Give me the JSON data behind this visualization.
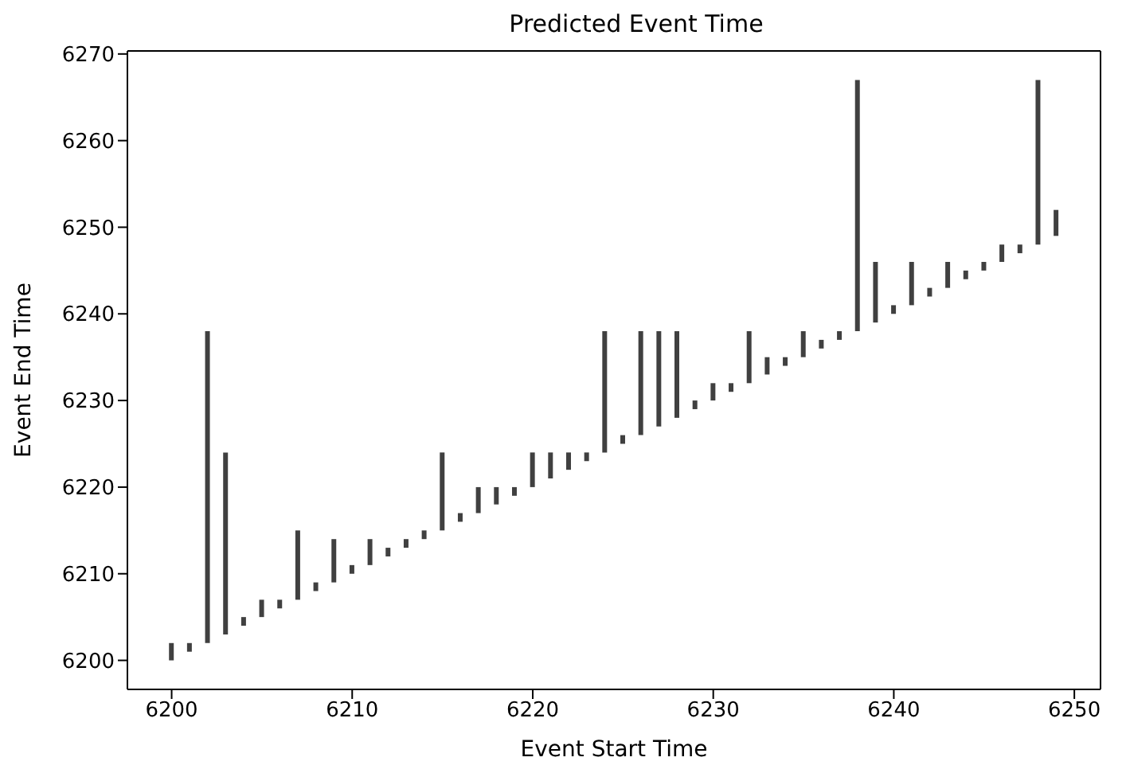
{
  "chart_data": {
    "type": "bar",
    "title": "Predicted Event Time",
    "xlabel": "Event Start Time",
    "ylabel": "Event End Time",
    "x": [
      6200,
      6201,
      6202,
      6203,
      6204,
      6205,
      6206,
      6207,
      6208,
      6209,
      6210,
      6211,
      6212,
      6213,
      6214,
      6215,
      6216,
      6217,
      6218,
      6219,
      6220,
      6221,
      6222,
      6223,
      6224,
      6225,
      6226,
      6227,
      6228,
      6229,
      6230,
      6231,
      6232,
      6233,
      6234,
      6235,
      6236,
      6237,
      6238,
      6239,
      6240,
      6241,
      6242,
      6243,
      6244,
      6245,
      6246,
      6247,
      6248,
      6249
    ],
    "base": [
      6200,
      6201,
      6202,
      6203,
      6204,
      6205,
      6206,
      6207,
      6208,
      6209,
      6210,
      6211,
      6212,
      6213,
      6214,
      6215,
      6216,
      6217,
      6218,
      6219,
      6220,
      6221,
      6222,
      6223,
      6224,
      6225,
      6226,
      6227,
      6228,
      6229,
      6230,
      6231,
      6232,
      6233,
      6234,
      6235,
      6236,
      6237,
      6238,
      6239,
      6240,
      6241,
      6242,
      6243,
      6244,
      6245,
      6246,
      6247,
      6248,
      6249
    ],
    "values": [
      2,
      1,
      36,
      21,
      1,
      2,
      1,
      8,
      1,
      5,
      1,
      3,
      1,
      1,
      1,
      9,
      1,
      3,
      2,
      1,
      4,
      3,
      2,
      1,
      14,
      1,
      12,
      11,
      10,
      1,
      2,
      1,
      6,
      2,
      1,
      3,
      1,
      1,
      29,
      7,
      1,
      5,
      1,
      3,
      1,
      1,
      2,
      1,
      19,
      3
    ],
    "color": "#404040",
    "xlim": [
      6197.55,
      6251.45
    ],
    "xticks": [
      6200,
      6210,
      6220,
      6230,
      6240,
      6250
    ],
    "ylim": [
      6196.65,
      6270.35
    ],
    "yticks": [
      6200,
      6210,
      6220,
      6230,
      6240,
      6250,
      6260,
      6270
    ],
    "grid": false,
    "legend": false
  }
}
